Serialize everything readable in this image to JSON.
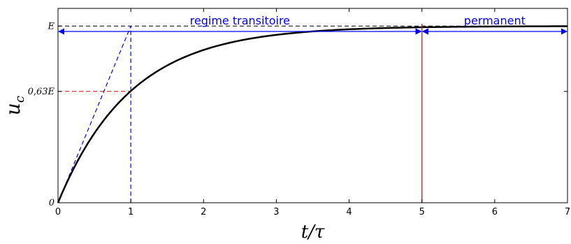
{
  "chart_data": {
    "type": "line",
    "xlabel": "t/τ",
    "ylabel": "u_c",
    "xlim": [
      0,
      7
    ],
    "ylim": [
      0,
      1.1
    ],
    "grid": false,
    "xticks": [
      "0",
      "1",
      "2",
      "3",
      "4",
      "5",
      "6",
      "7"
    ],
    "yticks": [
      {
        "value": 0,
        "label": "0"
      },
      {
        "value": 0.63,
        "label": "0,63E"
      },
      {
        "value": 1,
        "label": "E"
      }
    ],
    "series": [
      {
        "function": "1 - exp(-x)",
        "x_range": [
          0,
          7
        ],
        "color": "#000000"
      }
    ],
    "annotations": {
      "tangent": {
        "from": [
          0,
          0
        ],
        "to": [
          1,
          1
        ],
        "color": "#0000ff",
        "style": "dashed"
      },
      "tau_vertical": {
        "x": 1,
        "y_range": [
          0,
          1
        ],
        "color": "#0000ff",
        "style": "dashed"
      },
      "level_063": {
        "y": 0.63,
        "x_range": [
          0,
          1
        ],
        "color": "#ff0000",
        "style": "dashed"
      },
      "level_E": {
        "y": 1,
        "x_range": [
          0,
          7
        ],
        "color": "#000000",
        "style": "dashed"
      },
      "steady_state_line": {
        "x": 5,
        "color": "#ff0000",
        "style": "solid"
      }
    },
    "regions": [
      {
        "label": "regime transitoire",
        "x_range": [
          0,
          5
        ],
        "color": "#0000ff"
      },
      {
        "label": "permanent",
        "x_range": [
          5,
          7
        ],
        "color": "#0000ff"
      }
    ]
  }
}
